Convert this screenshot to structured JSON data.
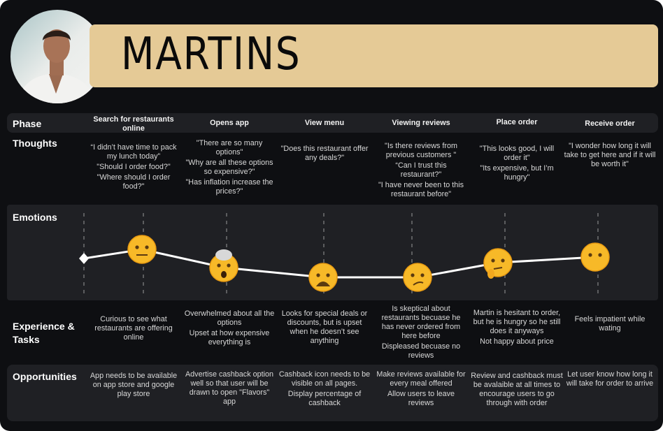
{
  "persona": {
    "name": "MARTINS"
  },
  "rows": {
    "phase": "Phase",
    "thoughts": "Thoughts",
    "emotions": "Emotions",
    "experience": "Experience & Tasks",
    "opportunities": "Opportunities"
  },
  "phases": [
    {
      "title": "Search for restaurants online",
      "thoughts": [
        "“I didn’t have time to pack my lunch today”",
        "\"Should I order food?\"",
        "\"Where should I order food?\""
      ],
      "emotion": "face-with-raised-eyebrow",
      "experience": [
        "Curious to see what restaurants are offering online"
      ],
      "opportunities": [
        "App needs to be available on app store and google play store"
      ]
    },
    {
      "title": "Opens app",
      "thoughts": [
        "\"There are so many options\"",
        "\"Why are all these options so expensive?\"",
        "\"Has inflation increase the prices?\""
      ],
      "emotion": "exploding-head",
      "experience": [
        "Overwhelmed about all the options",
        "Upset at how expensive everything is"
      ],
      "opportunities": [
        "Advertise cashback option well so that user will be drawn to open \"Flavors\" app"
      ]
    },
    {
      "title": "View menu",
      "thoughts": [
        "\"Does this restaurant offer any deals?\""
      ],
      "emotion": "weary-face",
      "experience": [
        "Looks for special deals or discounts, but is upset when he doesn’t see anything"
      ],
      "opportunities": [
        "Cashback icon needs to be visible on all pages.",
        "Display percentage of cashback"
      ]
    },
    {
      "title": "Viewing reviews",
      "thoughts": [
        "\"Is there reviews from previous customers \"",
        "“Can I trust this restaurant?\"",
        "\"I have never been to this restaurant before\""
      ],
      "emotion": "confused-face",
      "experience": [
        "Is skeptical about restaurants becuase he has never ordered from here before",
        "Displeased becuase no reviews"
      ],
      "opportunities": [
        "Make reviews available for every meal offered",
        "Allow users to leave reviews"
      ]
    },
    {
      "title": "Place order",
      "thoughts": [
        "\"This looks good, I will order it\"",
        "\"Its expensive, but I’m hungry\""
      ],
      "emotion": "thinking-face",
      "experience": [
        "Martin is hesitant to order, but he is hungry so he still does it anyways",
        "Not happy about price"
      ],
      "opportunities": [
        "Review and cashback must be avalaible at all times to encourage users to go through with order"
      ]
    },
    {
      "title": "Receive order",
      "thoughts": [
        "\"I wonder how long it will take to get here and if it will be worth it\""
      ],
      "emotion": "face-without-mouth",
      "experience": [
        "Feels impatient while wating"
      ],
      "opportunities": [
        "Let user know how long it will take for order to arrive"
      ]
    }
  ],
  "colors": {
    "background": "#0e0f12",
    "band": "#1f2024",
    "namebar": "#e5ca96",
    "emoji": "#f7b928"
  }
}
